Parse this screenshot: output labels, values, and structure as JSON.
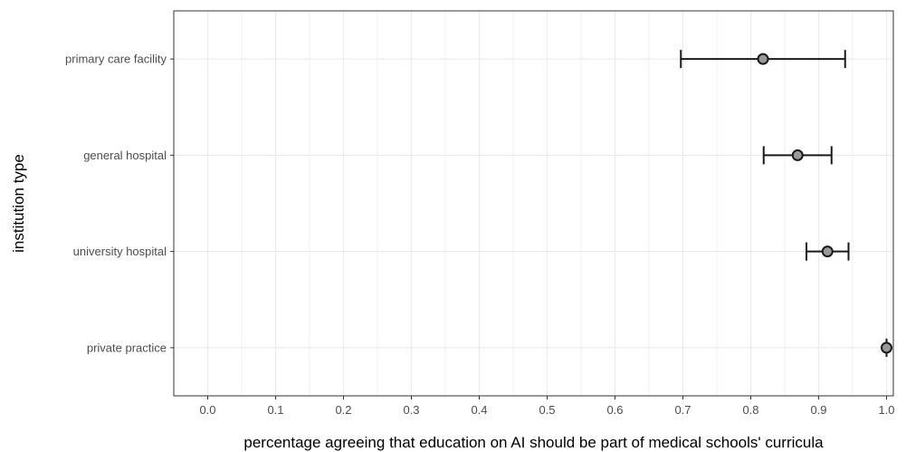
{
  "chart_data": {
    "type": "scatter",
    "subtype": "point-with-error-bars",
    "title": "",
    "xlabel": "percentage agreeing that education on AI should be part of medical schools' curricula",
    "ylabel": "institution type",
    "xlim": [
      -0.05,
      1.01
    ],
    "x_ticks": [
      "0.0",
      "0.1",
      "0.2",
      "0.3",
      "0.4",
      "0.5",
      "0.6",
      "0.7",
      "0.8",
      "0.9",
      "1.0"
    ],
    "x_tick_values": [
      0.0,
      0.1,
      0.2,
      0.3,
      0.4,
      0.5,
      0.6,
      0.7,
      0.8,
      0.9,
      1.0
    ],
    "categories": [
      "primary care facility",
      "general hospital",
      "university hospital",
      "private practice"
    ],
    "estimates": [
      0.818,
      0.869,
      0.913,
      1.0
    ],
    "lower": [
      0.697,
      0.819,
      0.882,
      1.0
    ],
    "upper": [
      0.939,
      0.919,
      0.944,
      1.0
    ],
    "grid": true,
    "legend": "none",
    "colors": {
      "panel_border": "#333333",
      "grid_major": "#ebebeb",
      "grid_minor": "#f2f2f2",
      "point_fill": "#999999",
      "stroke": "#1a1a1a"
    }
  }
}
